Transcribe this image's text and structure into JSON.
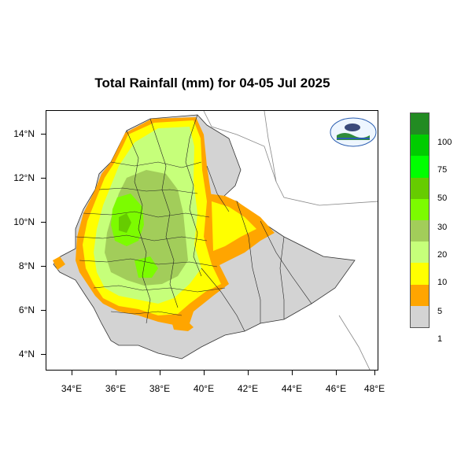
{
  "title": "Total Rainfall (mm) for 04-05 Jul 2025",
  "y_axis_labels": [
    "14°N",
    "12°N",
    "10°N",
    "8°N",
    "6°N",
    "4°N"
  ],
  "x_axis_labels": [
    "34°E",
    "36°E",
    "38°E",
    "40°E",
    "42°E",
    "44°E",
    "46°E",
    "48°E"
  ],
  "legend": {
    "colors": [
      "#228b22",
      "#00cc00",
      "#00ff00",
      "#66cc00",
      "#7cfc00",
      "#a2cd5a",
      "#c6ff7a",
      "#ffff00",
      "#ffa500",
      "#d3d3d3"
    ],
    "labels": [
      "100",
      "75",
      "50",
      "30",
      "20",
      "10",
      "5",
      "1"
    ]
  },
  "map_colors": {
    "gray": "#d3d3d3",
    "orange": "#ffa500",
    "yellow": "#ffff00",
    "light_green": "#c6ff7a",
    "olive_green": "#a2cd5a",
    "lime": "#7cfc00",
    "green": "#66cc00",
    "bright_green": "#00ff00"
  },
  "logo_icon": "meteorology-agency-logo-icon"
}
